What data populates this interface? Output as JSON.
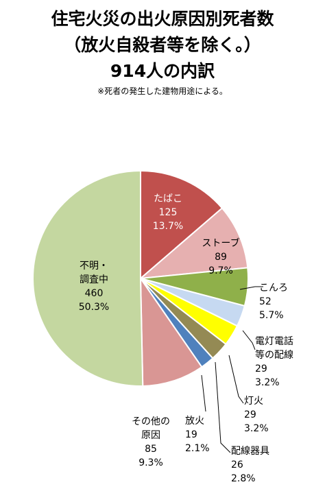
{
  "title_lines": [
    "住宅火災の出火原因別死者数",
    "（放火自殺者等を除く。）",
    "914人の内訳"
  ],
  "note": "※死者の発生した建物用途による。",
  "chart_data": {
    "type": "pie",
    "total": 914,
    "slices": [
      {
        "label": "たばこ",
        "value": 125,
        "percent": "13.7%",
        "color": "#c0504d"
      },
      {
        "label": "ストーブ",
        "value": 89,
        "percent": "9.7%",
        "color": "#e6b0b0"
      },
      {
        "label": "こんろ",
        "value": 52,
        "percent": "5.7%",
        "color": "#8fb04a"
      },
      {
        "label": "電灯電話等の配線",
        "label_lines": [
          "電灯電話",
          "等の配線"
        ],
        "value": 29,
        "percent": "3.2%",
        "color": "#c6d9f1"
      },
      {
        "label": "灯火",
        "value": 29,
        "percent": "3.2%",
        "color": "#ffff00"
      },
      {
        "label": "配線器具",
        "value": 26,
        "percent": "2.8%",
        "color": "#948a54"
      },
      {
        "label": "放火",
        "value": 19,
        "percent": "2.1%",
        "color": "#4f81bd"
      },
      {
        "label": "その他の原因",
        "label_lines": [
          "その他の",
          "原因"
        ],
        "value": 85,
        "percent": "9.3%",
        "color": "#d99694"
      },
      {
        "label": "不明・調査中",
        "label_lines": [
          "不明・",
          "調査中"
        ],
        "value": 460,
        "percent": "50.3%",
        "color": "#c4d7a0"
      }
    ]
  }
}
